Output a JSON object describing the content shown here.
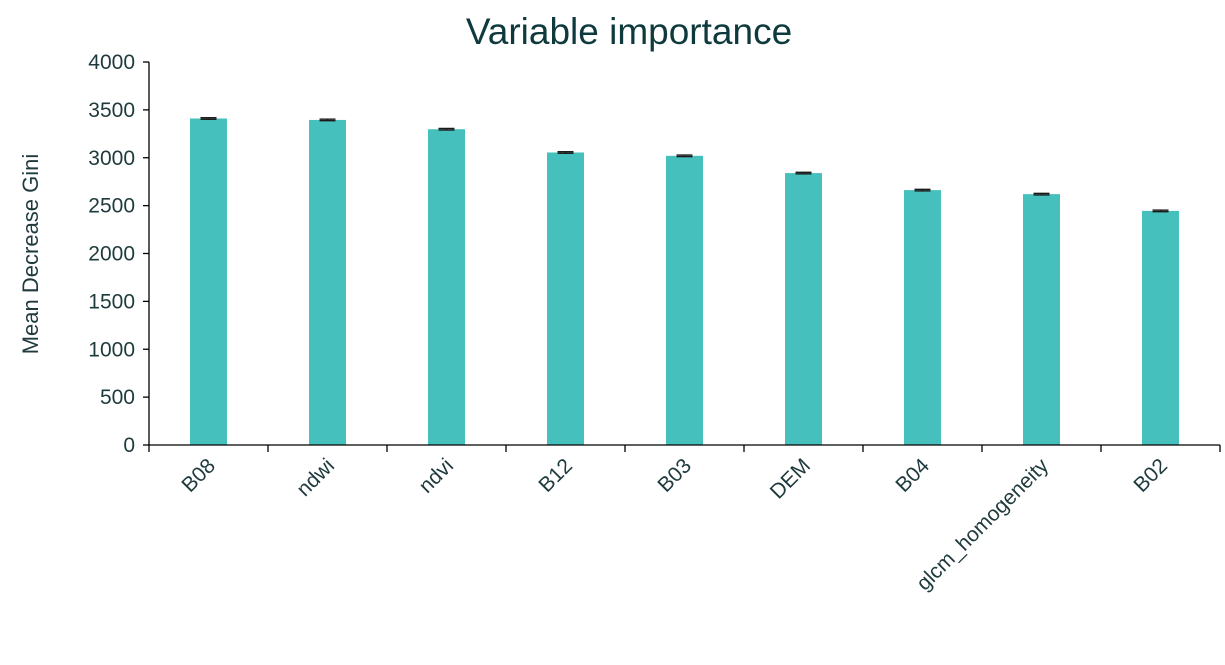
{
  "chart_data": {
    "type": "bar",
    "title": "Variable importance",
    "xlabel": "",
    "ylabel": "Mean Decrease Gini",
    "categories": [
      "B08",
      "ndwi",
      "ndvi",
      "B12",
      "B03",
      "DEM",
      "B04",
      "glcm_homogeneity",
      "B02"
    ],
    "values": [
      3410,
      3395,
      3298,
      3055,
      3020,
      2840,
      2662,
      2620,
      2445
    ],
    "error": [
      8,
      8,
      8,
      8,
      8,
      8,
      8,
      8,
      8
    ],
    "ylim": [
      0,
      4000
    ],
    "yticks": [
      0,
      500,
      1000,
      1500,
      2000,
      2500,
      3000,
      3500,
      4000
    ],
    "grid": false,
    "legend": "none",
    "bar_color": "#45c0bc",
    "error_bar_color": "#1a1a1a",
    "axis_color": "#000000",
    "text_color": "#1f3a3d"
  }
}
